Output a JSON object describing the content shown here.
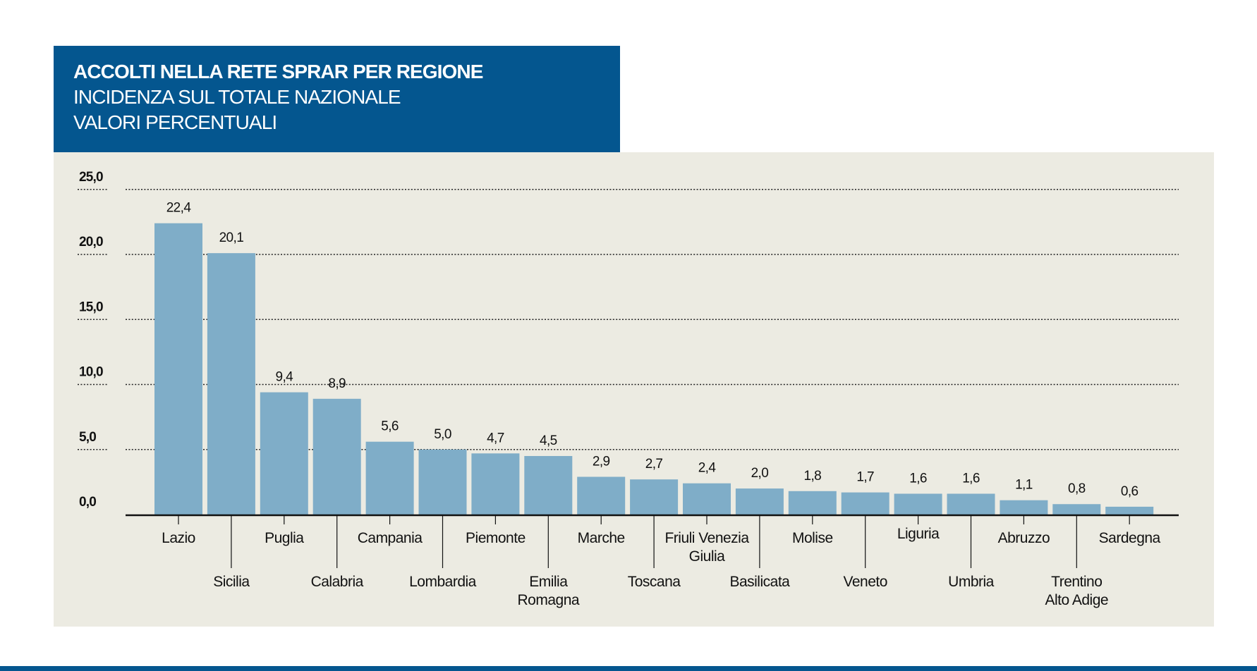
{
  "header": {
    "title": "ACCOLTI NELLA RETE SPRAR PER REGIONE",
    "subtitle_1": "INCIDENZA SUL TOTALE NAZIONALE",
    "subtitle_2": "VALORI PERCENTUALI"
  },
  "colors": {
    "header_bg": "#04568f",
    "panel_bg": "#ecebe2",
    "bar": "#7fadc8",
    "axis": "#111111"
  },
  "chart_data": {
    "type": "bar",
    "title": "ACCOLTI NELLA RETE SPRAR PER REGIONE",
    "subtitle": "INCIDENZA SUL TOTALE NAZIONALE VALORI PERCENTUALI",
    "xlabel": "",
    "ylabel": "",
    "ylim": [
      0,
      25
    ],
    "yticks": [
      "0,0",
      "5,0",
      "10,0",
      "15,0",
      "20,0",
      "25,0"
    ],
    "grid": "horizontal dotted",
    "categories": [
      [
        "Lazio"
      ],
      [
        "Sicilia"
      ],
      [
        "Puglia"
      ],
      [
        "Calabria"
      ],
      [
        "Campania"
      ],
      [
        "Lombardia"
      ],
      [
        "Piemonte"
      ],
      [
        "Emilia",
        "Romagna"
      ],
      [
        "Marche"
      ],
      [
        "Toscana"
      ],
      [
        "Friuli Venezia",
        "Giulia"
      ],
      [
        "Basilicata"
      ],
      [
        "Molise"
      ],
      [
        "Veneto"
      ],
      [
        "Liguria"
      ],
      [
        "Umbria"
      ],
      [
        "Abruzzo"
      ],
      [
        "Trentino",
        "Alto Adige"
      ],
      [
        "Sardegna"
      ]
    ],
    "values": [
      22.4,
      20.1,
      9.4,
      8.9,
      5.6,
      5.0,
      4.7,
      4.5,
      2.9,
      2.7,
      2.4,
      2.0,
      1.8,
      1.7,
      1.6,
      1.6,
      1.1,
      0.8,
      0.6
    ],
    "value_labels": [
      "22,4",
      "20,1",
      "9,4",
      "8,9",
      "5,6",
      "5,0",
      "4,7",
      "4,5",
      "2,9",
      "2,7",
      "2,4",
      "2,0",
      "1,8",
      "1,7",
      "1,6",
      "1,6",
      "1,1",
      "0,8",
      "0,6"
    ]
  }
}
